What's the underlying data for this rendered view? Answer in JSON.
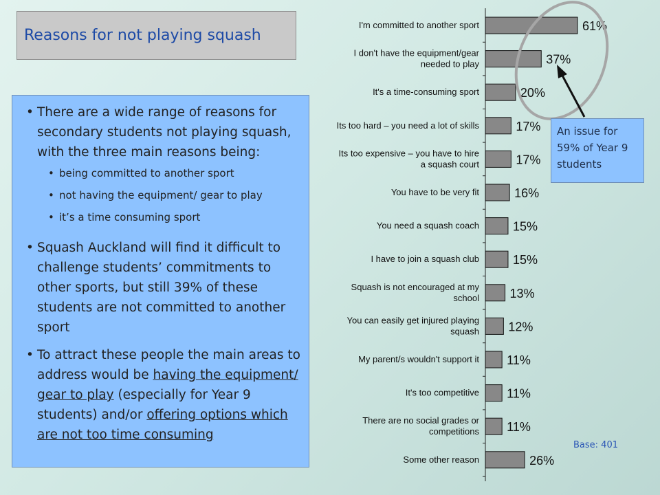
{
  "title": "Reasons for not playing squash",
  "text_box": {
    "para1": "There are a wide range of reasons for secondary students not playing squash, with the three main reasons being:",
    "bullets": [
      "being committed to another sport",
      "not having the equipment/ gear to play",
      "it’s a time consuming sport"
    ],
    "para2": "Squash Auckland will find it difficult to challenge students’ commitments to other sports, but still 39% of these students are not committed to another sport",
    "para3": {
      "prefix": "To attract these people the main areas to address would be ",
      "u1": "having the equipment/ gear to play",
      "mid": " (especially for Year 9 students) and/or ",
      "u2": "offering options which are not too time consuming"
    }
  },
  "callout": "An issue for 59% of Year 9 students",
  "base": "Base:  401",
  "colors": {
    "bar": "#888888",
    "text_box": "#8dc2ff",
    "title": "#1d4aa6",
    "circle": "#a6a6a6"
  },
  "chart_data": {
    "type": "bar",
    "orientation": "horizontal",
    "value_suffix": "%",
    "xlim": [
      0,
      70
    ],
    "categories": [
      [
        "I'm committed to another sport"
      ],
      [
        "I don't have the equipment/gear",
        "needed to play"
      ],
      [
        "It's a time-consuming sport"
      ],
      [
        "Its too hard – you need a lot of skills"
      ],
      [
        "Its too expensive – you have to hire",
        "a squash court"
      ],
      [
        "You have to be very fit"
      ],
      [
        "You need a squash coach"
      ],
      [
        "I have to join a squash club"
      ],
      [
        "Squash is not encouraged at my",
        "school"
      ],
      [
        "You can easily get injured playing",
        "squash"
      ],
      [
        "My parent/s wouldn't support it"
      ],
      [
        "It's too competitive"
      ],
      [
        "There are no social grades or",
        "competitions"
      ],
      [
        "Some other reason"
      ]
    ],
    "values": [
      61,
      37,
      20,
      17,
      17,
      16,
      15,
      15,
      13,
      12,
      11,
      11,
      11,
      26
    ]
  }
}
